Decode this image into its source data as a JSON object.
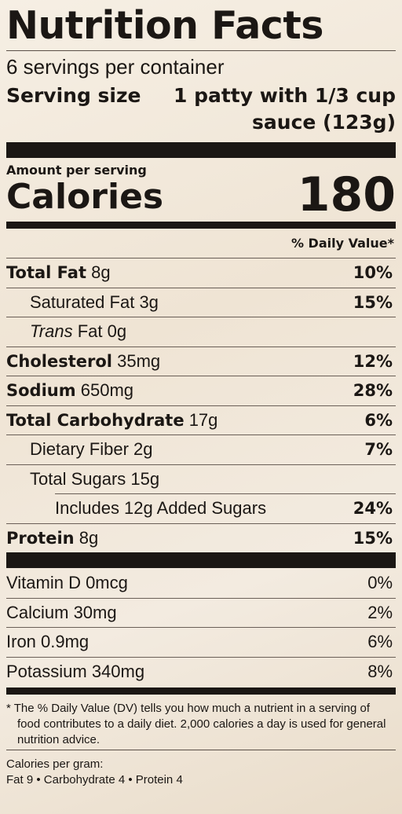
{
  "label": {
    "title": "Nutrition Facts",
    "servings_per_container": "6 servings per container",
    "serving_size_label": "Serving size",
    "serving_size_value": "1 patty with 1/3 cup sauce (123g)",
    "amount_per_serving": "Amount per serving",
    "calories_label": "Calories",
    "calories_value": "180",
    "daily_value_header": "% Daily Value*",
    "nutrients": [
      {
        "name": "Total Fat",
        "amount": "8g",
        "dv": "10%"
      },
      {
        "name": "Saturated Fat",
        "amount": "3g",
        "dv": "15%"
      },
      {
        "name_italic": "Trans",
        "name": "Fat",
        "amount": "0g",
        "dv": ""
      },
      {
        "name": "Cholesterol",
        "amount": "35mg",
        "dv": "12%"
      },
      {
        "name": "Sodium",
        "amount": "650mg",
        "dv": "28%"
      },
      {
        "name": "Total Carbohydrate",
        "amount": "17g",
        "dv": "6%"
      },
      {
        "name": "Dietary Fiber",
        "amount": "2g",
        "dv": "7%"
      },
      {
        "name": "Total Sugars",
        "amount": "15g",
        "dv": ""
      },
      {
        "name": "Includes 12g Added Sugars",
        "amount": "",
        "dv": "24%"
      },
      {
        "name": "Protein",
        "amount": "8g",
        "dv": "15%"
      }
    ],
    "vitamins": [
      {
        "name": "Vitamin D 0mcg",
        "dv": "0%"
      },
      {
        "name": "Calcium 30mg",
        "dv": "2%"
      },
      {
        "name": "Iron 0.9mg",
        "dv": "6%"
      },
      {
        "name": "Potassium 340mg",
        "dv": "8%"
      }
    ],
    "footnote": "* The % Daily Value (DV) tells you how much a nutrient in a serving of food contributes to a daily diet. 2,000 calories a day is used for general nutrition advice.",
    "calories_per_gram_label": "Calories per gram:",
    "calories_per_gram_values": "Fat 9 • Carbohydrate 4 • Protein 4"
  }
}
